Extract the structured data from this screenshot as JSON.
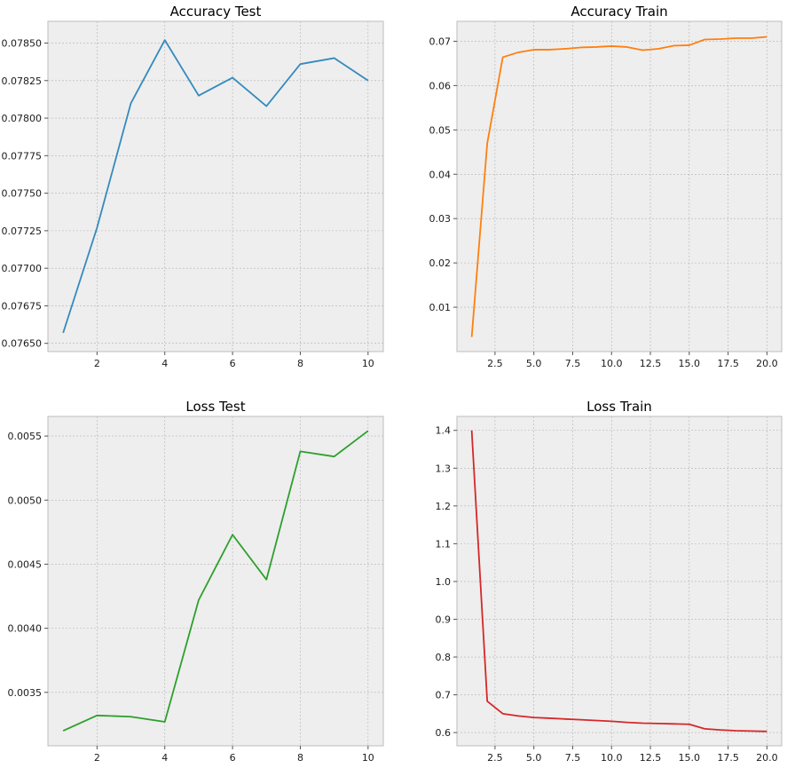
{
  "chart_data": [
    {
      "id": "acc-test",
      "type": "line",
      "title": "Accuracy Test",
      "color": "#348abd",
      "x": [
        1,
        2,
        3,
        4,
        5,
        6,
        7,
        8,
        9,
        10
      ],
      "values": [
        0.07657,
        0.07727,
        0.0781,
        0.07852,
        0.07815,
        0.07827,
        0.07808,
        0.07836,
        0.0784,
        0.07825
      ],
      "xlim": [
        0.55,
        10.45
      ],
      "ylim": [
        0.076445,
        0.078645
      ],
      "xticks": [
        2,
        4,
        6,
        8,
        10
      ],
      "xtick_labels": [
        "2",
        "4",
        "6",
        "8",
        "10"
      ],
      "yticks": [
        0.0765,
        0.07675,
        0.077,
        0.07725,
        0.0775,
        0.07775,
        0.078,
        0.07825,
        0.0785
      ],
      "ytick_labels": [
        "0.07650",
        "0.07675",
        "0.07700",
        "0.07725",
        "0.07750",
        "0.07775",
        "0.07800",
        "0.07825",
        "0.07850"
      ],
      "grid": true
    },
    {
      "id": "acc-train",
      "type": "line",
      "title": "Accuracy Train",
      "color": "#ff7f0e",
      "x": [
        1,
        2,
        3,
        4,
        5,
        6,
        7,
        8,
        9,
        10,
        11,
        12,
        13,
        14,
        15,
        16,
        17,
        18,
        19,
        20
      ],
      "values": [
        0.0033,
        0.047,
        0.0664,
        0.0675,
        0.0681,
        0.0681,
        0.0683,
        0.0686,
        0.0687,
        0.0689,
        0.0687,
        0.068,
        0.0683,
        0.069,
        0.0691,
        0.0704,
        0.0705,
        0.0707,
        0.0707,
        0.071
      ],
      "xlim": [
        0.05,
        20.95
      ],
      "ylim": [
        0.0,
        0.0745
      ],
      "xticks": [
        2.5,
        5.0,
        7.5,
        10.0,
        12.5,
        15.0,
        17.5,
        20.0
      ],
      "xtick_labels": [
        "2.5",
        "5.0",
        "7.5",
        "10.0",
        "12.5",
        "15.0",
        "17.5",
        "20.0"
      ],
      "yticks": [
        0.01,
        0.02,
        0.03,
        0.04,
        0.05,
        0.06,
        0.07
      ],
      "ytick_labels": [
        "0.01",
        "0.02",
        "0.03",
        "0.04",
        "0.05",
        "0.06",
        "0.07"
      ],
      "grid": true
    },
    {
      "id": "loss-test",
      "type": "line",
      "title": "Loss Test",
      "color": "#2ca02c",
      "x": [
        1,
        2,
        3,
        4,
        5,
        6,
        7,
        8,
        9,
        10
      ],
      "values": [
        0.0032,
        0.00332,
        0.00331,
        0.00327,
        0.00422,
        0.00473,
        0.00438,
        0.00538,
        0.00534,
        0.00554
      ],
      "xlim": [
        0.55,
        10.45
      ],
      "ylim": [
        0.003083,
        0.005653
      ],
      "xticks": [
        2,
        4,
        6,
        8,
        10
      ],
      "xtick_labels": [
        "2",
        "4",
        "6",
        "8",
        "10"
      ],
      "yticks": [
        0.0035,
        0.004,
        0.0045,
        0.005,
        0.0055
      ],
      "ytick_labels": [
        "0.0035",
        "0.0040",
        "0.0045",
        "0.0050",
        "0.0055"
      ],
      "grid": true
    },
    {
      "id": "loss-train",
      "type": "line",
      "title": "Loss Train",
      "color": "#d62728",
      "x": [
        1,
        2,
        3,
        4,
        5,
        6,
        7,
        8,
        9,
        10,
        11,
        12,
        13,
        14,
        15,
        16,
        17,
        18,
        19,
        20
      ],
      "values": [
        1.4,
        0.683,
        0.65,
        0.644,
        0.64,
        0.638,
        0.636,
        0.634,
        0.632,
        0.63,
        0.627,
        0.625,
        0.624,
        0.623,
        0.622,
        0.61,
        0.607,
        0.605,
        0.604,
        0.603
      ],
      "xlim": [
        0.05,
        20.95
      ],
      "ylim": [
        0.565,
        1.437
      ],
      "xticks": [
        2.5,
        5.0,
        7.5,
        10.0,
        12.5,
        15.0,
        17.5,
        20.0
      ],
      "xtick_labels": [
        "2.5",
        "5.0",
        "7.5",
        "10.0",
        "12.5",
        "15.0",
        "17.5",
        "20.0"
      ],
      "yticks": [
        0.6,
        0.7,
        0.8,
        0.9,
        1.0,
        1.1,
        1.2,
        1.3,
        1.4
      ],
      "ytick_labels": [
        "0.6",
        "0.7",
        "0.8",
        "0.9",
        "1.0",
        "1.1",
        "1.2",
        "1.3",
        "1.4"
      ],
      "grid": true
    }
  ],
  "style": {
    "panel_background": "#eeeeee",
    "grid_color": "#b2b2b2",
    "spine_color": "#bcbcbc",
    "tick_color": "#555555",
    "text_color": "#1a1a1a"
  }
}
